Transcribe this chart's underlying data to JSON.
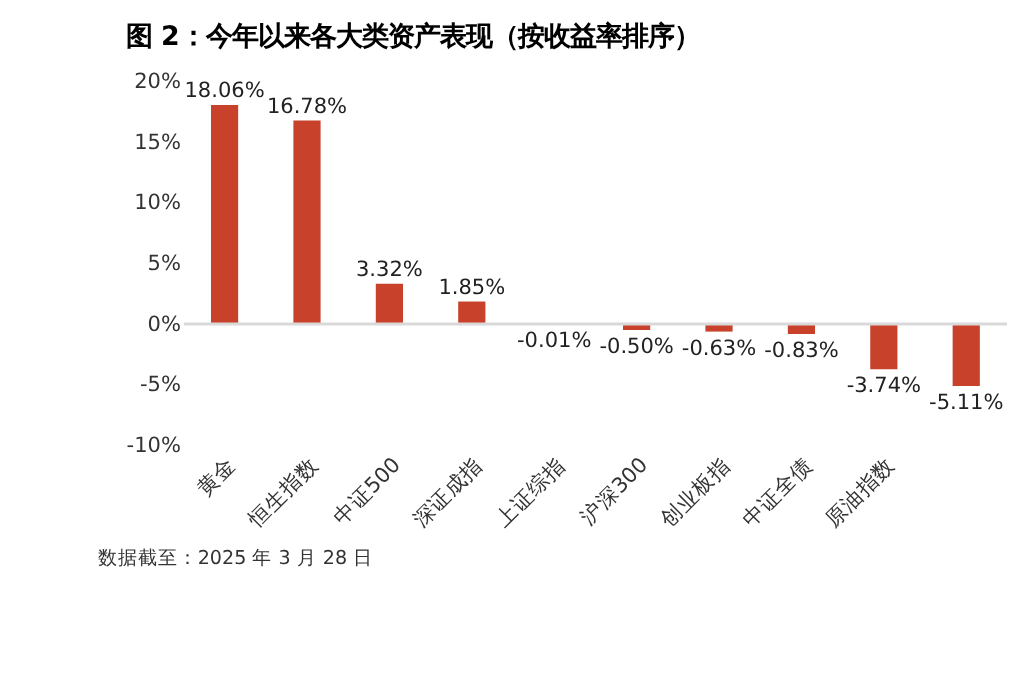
{
  "chart_data": {
    "type": "bar",
    "title": "图 2：今年以来各大类资产表现（按收益率排序）",
    "categories": [
      "黄金",
      "恒生指数",
      "中证500",
      "深证成指",
      "上证综指",
      "沪深300",
      "创业板指",
      "中证全债",
      "原油指数",
      null
    ],
    "values": [
      18.06,
      16.78,
      3.32,
      1.85,
      -0.01,
      -0.5,
      -0.63,
      -0.83,
      -3.74,
      -5.11
    ],
    "value_labels": [
      "18.06%",
      "16.78%",
      "3.32%",
      "1.85%",
      "-0.01%",
      "-0.50%",
      "-0.63%",
      "-0.83%",
      "-3.74%",
      "-5.11%"
    ],
    "color": "#c8412a",
    "ylim": [
      -10,
      20
    ],
    "yticks": [
      {
        "value": -10,
        "label": "-10%"
      },
      {
        "value": -5,
        "label": "-5%"
      },
      {
        "value": 0,
        "label": "0%"
      },
      {
        "value": 5,
        "label": "5%"
      },
      {
        "value": 10,
        "label": "10%"
      },
      {
        "value": 15,
        "label": "15%"
      },
      {
        "value": 20,
        "label": "20%"
      }
    ],
    "grid": false,
    "ref_lines": [
      {
        "axis": "y",
        "value": 0,
        "color": "#d9d9d9"
      }
    ],
    "annotations": [
      "数据截至：2025 年 3 月 28 日"
    ]
  }
}
